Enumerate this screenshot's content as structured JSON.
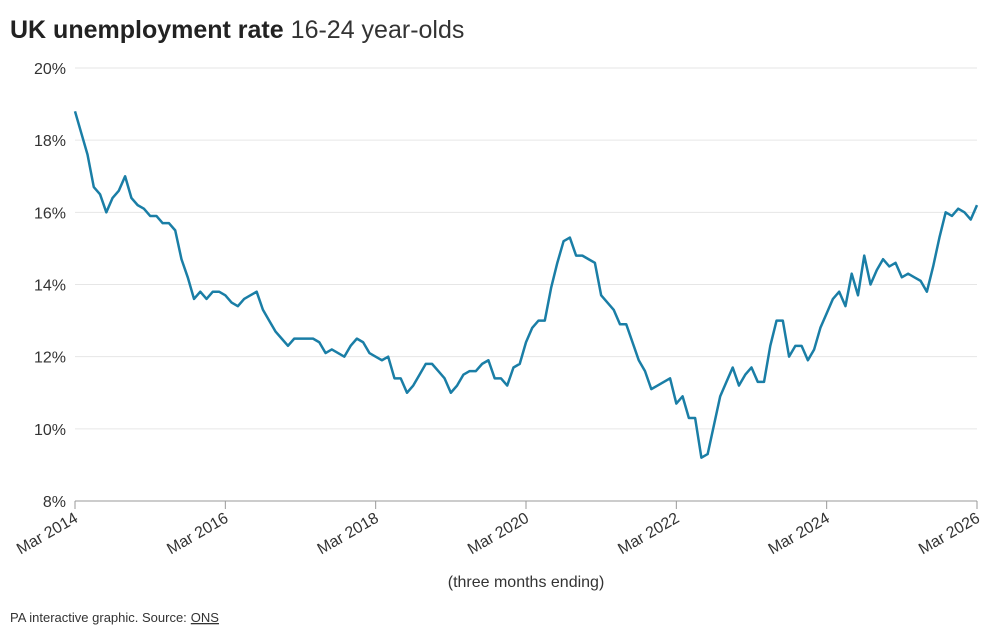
{
  "chart_data": {
    "type": "line",
    "title": "UK unemployment rate",
    "subtitle": "16-24 year-olds",
    "x_label": "(three months ending)",
    "source_text": "PA interactive graphic. Source:",
    "source_link": "ONS",
    "x": [
      "2014-03",
      "2014-04",
      "2014-05",
      "2014-06",
      "2014-07",
      "2014-08",
      "2014-09",
      "2014-10",
      "2014-11",
      "2014-12",
      "2015-01",
      "2015-02",
      "2015-03",
      "2015-04",
      "2015-05",
      "2015-06",
      "2015-07",
      "2015-08",
      "2015-09",
      "2015-10",
      "2015-11",
      "2015-12",
      "2016-01",
      "2016-02",
      "2016-03",
      "2016-04",
      "2016-05",
      "2016-06",
      "2016-07",
      "2016-08",
      "2016-09",
      "2016-10",
      "2016-11",
      "2016-12",
      "2017-01",
      "2017-02",
      "2017-03",
      "2017-04",
      "2017-05",
      "2017-06",
      "2017-07",
      "2017-08",
      "2017-09",
      "2017-10",
      "2017-11",
      "2017-12",
      "2018-01",
      "2018-02",
      "2018-03",
      "2018-04",
      "2018-05",
      "2018-06",
      "2018-07",
      "2018-08",
      "2018-09",
      "2018-10",
      "2018-11",
      "2018-12",
      "2019-01",
      "2019-02",
      "2019-03",
      "2019-04",
      "2019-05",
      "2019-06",
      "2019-07",
      "2019-08",
      "2019-09",
      "2019-10",
      "2019-11",
      "2019-12",
      "2020-01",
      "2020-02",
      "2020-03",
      "2020-04",
      "2020-05",
      "2020-06",
      "2020-07",
      "2020-08",
      "2020-09",
      "2020-10",
      "2020-11",
      "2020-12",
      "2021-01",
      "2021-02",
      "2021-03",
      "2021-04",
      "2021-05",
      "2021-06",
      "2021-07",
      "2021-08",
      "2021-09",
      "2021-10",
      "2021-11",
      "2021-12",
      "2022-01",
      "2022-02",
      "2022-03",
      "2022-04",
      "2022-05",
      "2022-06",
      "2022-07",
      "2022-08",
      "2022-09",
      "2022-10",
      "2022-11",
      "2022-12",
      "2023-01",
      "2023-02",
      "2023-03",
      "2023-04",
      "2023-05",
      "2023-06",
      "2023-07",
      "2023-08",
      "2023-09",
      "2023-10",
      "2023-11",
      "2023-12",
      "2024-01",
      "2024-02",
      "2024-03",
      "2024-04",
      "2024-05",
      "2024-06",
      "2024-07",
      "2024-08",
      "2024-09",
      "2024-10",
      "2024-11",
      "2024-12",
      "2025-01",
      "2025-02",
      "2025-03",
      "2025-04",
      "2025-05",
      "2025-06",
      "2025-07",
      "2025-08",
      "2025-09",
      "2025-10",
      "2025-11",
      "2025-12",
      "2026-01",
      "2026-02",
      "2026-03"
    ],
    "series": [
      {
        "name": "16-24 unemployment rate",
        "color": "#1a7ea6",
        "values": [
          18.8,
          18.2,
          17.6,
          16.7,
          16.5,
          16.0,
          16.4,
          16.6,
          17.0,
          16.4,
          16.2,
          16.1,
          15.9,
          15.9,
          15.7,
          15.7,
          15.5,
          14.7,
          14.2,
          13.6,
          13.8,
          13.6,
          13.8,
          13.8,
          13.7,
          13.5,
          13.4,
          13.6,
          13.7,
          13.8,
          13.3,
          13.0,
          12.7,
          12.5,
          12.3,
          12.5,
          12.5,
          12.5,
          12.5,
          12.4,
          12.1,
          12.2,
          12.1,
          12.0,
          12.3,
          12.5,
          12.4,
          12.1,
          12.0,
          11.9,
          12.0,
          11.4,
          11.4,
          11.0,
          11.2,
          11.5,
          11.8,
          11.8,
          11.6,
          11.4,
          11.0,
          11.2,
          11.5,
          11.6,
          11.6,
          11.8,
          11.9,
          11.4,
          11.4,
          11.2,
          11.7,
          11.8,
          12.4,
          12.8,
          13.0,
          13.0,
          13.9,
          14.6,
          15.2,
          15.3,
          14.8,
          14.8,
          14.7,
          14.6,
          13.7,
          13.5,
          13.3,
          12.9,
          12.9,
          12.4,
          11.9,
          11.6,
          11.1,
          11.2,
          11.3,
          11.4,
          10.7,
          10.9,
          10.3,
          10.3,
          9.2,
          9.3,
          10.1,
          10.9,
          11.3,
          11.7,
          11.2,
          11.5,
          11.7,
          11.3,
          11.3,
          12.3,
          13.0,
          13.0,
          12.0,
          12.3,
          12.3,
          11.9,
          12.2,
          12.8,
          13.2,
          13.6,
          13.8,
          13.4,
          14.3,
          13.7,
          14.8,
          14.0,
          14.4,
          14.7,
          14.5,
          14.6,
          14.2,
          14.3,
          14.2,
          14.1,
          13.8,
          14.5,
          15.3,
          16.0,
          15.9,
          16.1,
          16.0,
          15.8,
          16.2
        ]
      }
    ],
    "xlim": [
      "2014-03",
      "2026-03"
    ],
    "xticks": [
      {
        "value": "2014-03",
        "label": "Mar 2014"
      },
      {
        "value": "2016-03",
        "label": "Mar 2016"
      },
      {
        "value": "2018-03",
        "label": "Mar 2018"
      },
      {
        "value": "2020-03",
        "label": "Mar 2020"
      },
      {
        "value": "2022-03",
        "label": "Mar 2022"
      },
      {
        "value": "2024-03",
        "label": "Mar 2024"
      },
      {
        "value": "2026-03",
        "label": "Mar 2026"
      }
    ],
    "ylim": [
      8,
      20
    ],
    "yticks": [
      {
        "value": 8,
        "label": "8%"
      },
      {
        "value": 10,
        "label": "10%"
      },
      {
        "value": 12,
        "label": "12%"
      },
      {
        "value": 14,
        "label": "14%"
      },
      {
        "value": 16,
        "label": "16%"
      },
      {
        "value": 18,
        "label": "18%"
      },
      {
        "value": 20,
        "label": "20%"
      }
    ],
    "grid": true
  }
}
